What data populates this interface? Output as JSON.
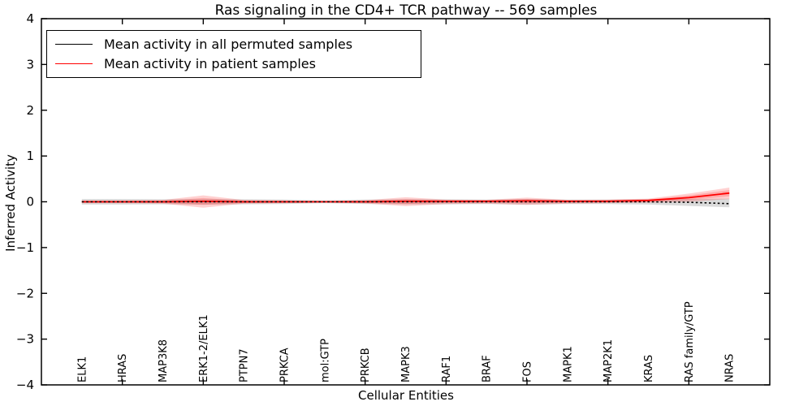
{
  "chart_data": {
    "type": "line",
    "title": "Ras signaling in the CD4+ TCR pathway -- 569 samples",
    "xlabel": "Cellular Entities",
    "ylabel": "Inferred Activity",
    "ylim": [
      -4,
      4
    ],
    "ytick_values": [
      -4,
      -3,
      -2,
      -1,
      0,
      1,
      2,
      3,
      4
    ],
    "ytick_labels": [
      "−4",
      "−3",
      "−2",
      "−1",
      "0",
      "1",
      "2",
      "3",
      "4"
    ],
    "grid": false,
    "legend_position": "upper left",
    "categories": [
      "ELK1",
      "HRAS",
      "MAP3K8",
      "ERK1-2/ELK1",
      "PTPN7",
      "PRKCA",
      "mol:GTP",
      "PRKCB",
      "MAPK3",
      "RAF1",
      "BRAF",
      "FOS",
      "MAPK1",
      "MAP2K1",
      "KRAS",
      "RAS family/GTP",
      "NRAS"
    ],
    "series": [
      {
        "name": "Mean activity in all permuted samples",
        "color": "#000000",
        "line_style": "dashed",
        "band_color": "#999999",
        "band_alpha": 0.35,
        "values": [
          0,
          0,
          0,
          0,
          0,
          0,
          0,
          0,
          0,
          0,
          0,
          0,
          0,
          0,
          0,
          -0.01,
          -0.04
        ],
        "band_upper": [
          0.06,
          0.06,
          0.055,
          0.06,
          0.055,
          0.05,
          0.03,
          0.05,
          0.055,
          0.055,
          0.05,
          0.06,
          0.05,
          0.05,
          0.055,
          0.06,
          0.07
        ],
        "band_lower": [
          -0.06,
          -0.06,
          -0.055,
          -0.06,
          -0.055,
          -0.05,
          -0.03,
          -0.05,
          -0.055,
          -0.055,
          -0.05,
          -0.06,
          -0.05,
          -0.05,
          -0.06,
          -0.09,
          -0.12
        ]
      },
      {
        "name": "Mean activity in patient samples",
        "color": "#ff0000",
        "line_style": "solid",
        "band_color": "#ff0000",
        "band_alpha": 0.18,
        "values": [
          0,
          0,
          0,
          0.01,
          0,
          0,
          0,
          0,
          0.01,
          0.01,
          0.01,
          0.02,
          0.01,
          0.01,
          0.03,
          0.09,
          0.19
        ],
        "band_upper": [
          0.03,
          0.03,
          0.04,
          0.14,
          0.04,
          0.03,
          0.015,
          0.035,
          0.1,
          0.05,
          0.045,
          0.09,
          0.045,
          0.05,
          0.07,
          0.18,
          0.31
        ],
        "band_lower": [
          -0.03,
          -0.03,
          -0.04,
          -0.13,
          -0.04,
          -0.03,
          -0.015,
          -0.035,
          -0.095,
          -0.05,
          -0.04,
          -0.07,
          -0.04,
          -0.03,
          -0.02,
          0.0,
          0.06
        ]
      }
    ]
  }
}
